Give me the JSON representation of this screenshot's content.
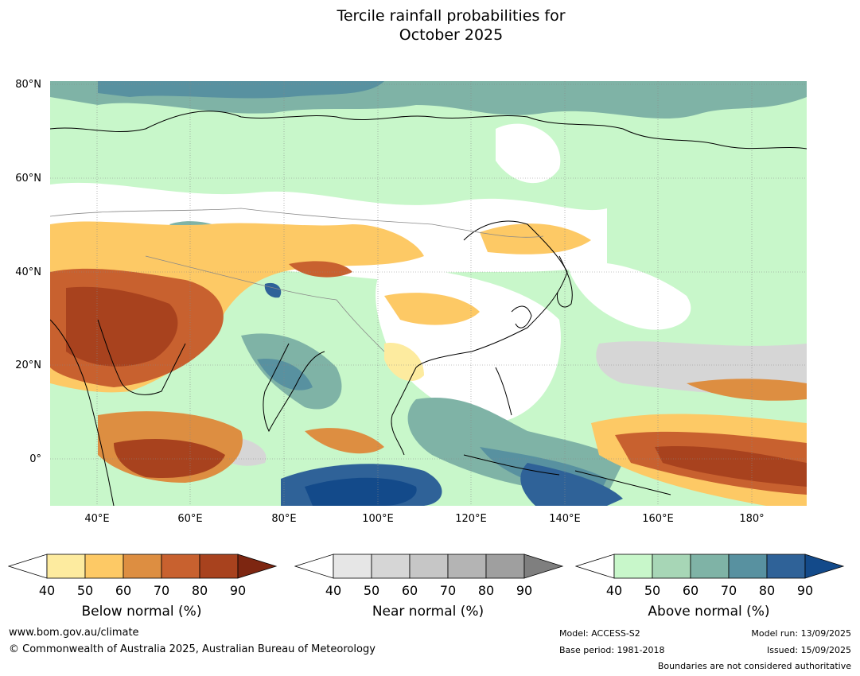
{
  "title_line1": "Tercile rainfall probabilities for",
  "title_line2": "October 2025",
  "map": {
    "lat_labels": [
      "80°N",
      "60°N",
      "40°N",
      "20°N",
      "0°"
    ],
    "lon_labels": [
      "40°E",
      "60°E",
      "80°E",
      "100°E",
      "120°E",
      "140°E",
      "160°E",
      "180°"
    ],
    "region": "Asia"
  },
  "colorbars": [
    {
      "label": "Below normal (%)",
      "ticks": [
        "40",
        "50",
        "60",
        "70",
        "80",
        "90"
      ],
      "colors": [
        "#fdeb9f",
        "#fdc965",
        "#dd8e41",
        "#c8612f",
        "#a8421e",
        "#7d2611"
      ]
    },
    {
      "label": "Near normal (%)",
      "ticks": [
        "40",
        "50",
        "60",
        "70",
        "80",
        "90"
      ],
      "colors": [
        "#e6e6e6",
        "#d6d6d6",
        "#c6c6c6",
        "#b4b4b4",
        "#9f9f9f",
        "#7f7f7f"
      ]
    },
    {
      "label": "Above normal (%)",
      "ticks": [
        "40",
        "50",
        "60",
        "70",
        "80",
        "90"
      ],
      "colors": [
        "#c8f7ca",
        "#a7d6b6",
        "#7fb3a6",
        "#5891a0",
        "#2f6298",
        "#134a8a"
      ]
    }
  ],
  "footer": {
    "url": "www.bom.gov.au/climate",
    "copyright": "© Commonwealth of Australia 2025, Australian Bureau of Meteorology",
    "model": "Model: ACCESS-S2",
    "base_period": "Base period: 1981-2018",
    "model_run": "Model run: 13/09/2025",
    "issued": "Issued: 15/09/2025",
    "disclaimer": "Boundaries are not considered authoritative"
  }
}
